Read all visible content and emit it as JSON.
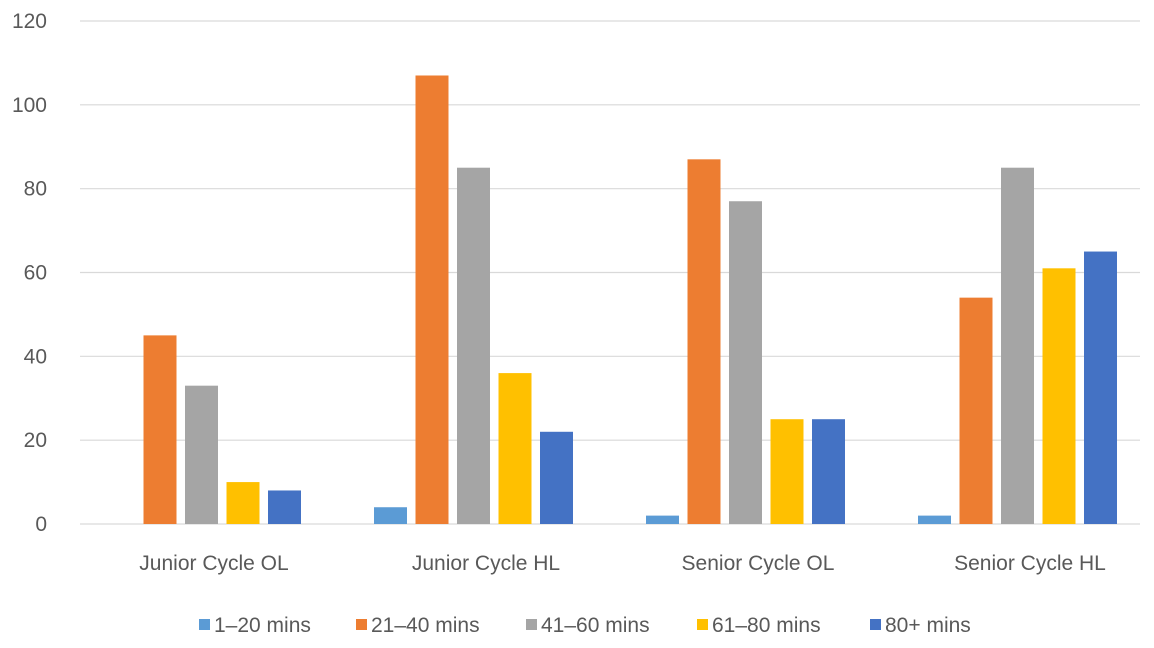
{
  "chart_data": {
    "type": "bar",
    "categories": [
      "Junior Cycle OL",
      "Junior Cycle HL",
      "Senior Cycle OL",
      "Senior Cycle HL"
    ],
    "series": [
      {
        "name": "1–20 mins",
        "color": "#5B9BD5",
        "values": [
          0,
          4,
          2,
          2
        ]
      },
      {
        "name": "21–40 mins",
        "color": "#ED7D31",
        "values": [
          45,
          107,
          87,
          54
        ]
      },
      {
        "name": "41–60 mins",
        "color": "#A5A5A5",
        "values": [
          33,
          85,
          77,
          85
        ]
      },
      {
        "name": "61–80 mins",
        "color": "#FFC000",
        "values": [
          10,
          36,
          25,
          61
        ]
      },
      {
        "name": "80+ mins",
        "color": "#4472C4",
        "values": [
          8,
          22,
          25,
          65
        ]
      }
    ],
    "ylim": [
      0,
      120
    ],
    "yticks": [
      0,
      20,
      40,
      60,
      80,
      100,
      120
    ],
    "grid": true,
    "legend_position": "bottom",
    "gridline_color": "#D9D9D9"
  }
}
